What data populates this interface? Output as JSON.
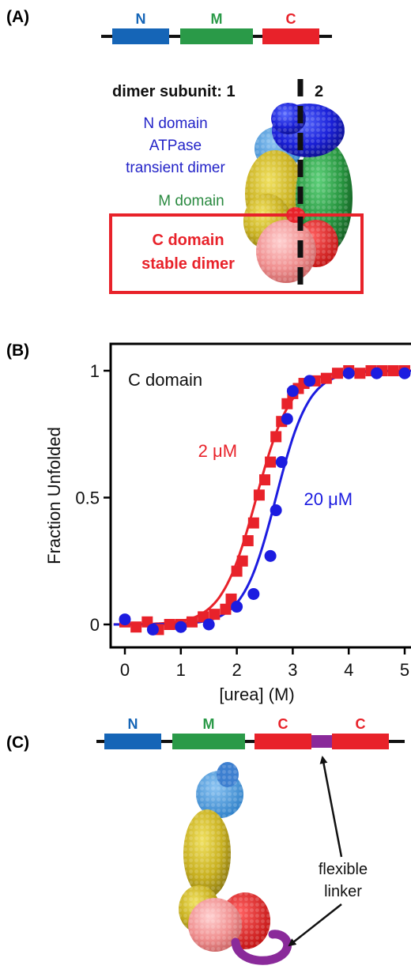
{
  "panels": {
    "a": "(A)",
    "b": "(B)",
    "c": "(C)"
  },
  "panel_a": {
    "domain_bar": [
      {
        "label": "N",
        "color": "#1565b7"
      },
      {
        "label": "M",
        "color": "#2a9a48"
      },
      {
        "label": "C",
        "color": "#e8222a"
      }
    ],
    "subunit_label": "dimer subunit: 1",
    "subunit_2": "2",
    "n_domain_lines": [
      "N domain",
      "ATPase",
      "transient dimer"
    ],
    "m_domain": "M domain",
    "c_domain_lines": [
      "C domain",
      "stable dimer"
    ]
  },
  "chart_data": {
    "type": "scatter",
    "title": "C domain",
    "xlabel": "[urea] (M)",
    "ylabel": "Fraction Unfolded",
    "xlim": [
      -0.2,
      5.2
    ],
    "ylim": [
      -0.05,
      1.1
    ],
    "x_ticks": [
      0,
      1,
      2,
      3,
      4,
      5
    ],
    "x_tick_labels": [
      "0",
      "1",
      "2",
      "3",
      "4",
      "5"
    ],
    "y_ticks": [
      0,
      0.5,
      1
    ],
    "y_tick_labels": [
      "0",
      "0.5",
      "1"
    ],
    "series": [
      {
        "name": "2 μM",
        "color": "#e8222a",
        "marker": "square",
        "points": [
          [
            0.0,
            0.01
          ],
          [
            0.2,
            -0.01
          ],
          [
            0.4,
            0.01
          ],
          [
            0.6,
            -0.02
          ],
          [
            0.8,
            0.0
          ],
          [
            1.0,
            0.0
          ],
          [
            1.2,
            0.01
          ],
          [
            1.4,
            0.03
          ],
          [
            1.6,
            0.04
          ],
          [
            1.8,
            0.06
          ],
          [
            1.9,
            0.1
          ],
          [
            2.0,
            0.21
          ],
          [
            2.1,
            0.25
          ],
          [
            2.2,
            0.33
          ],
          [
            2.3,
            0.4
          ],
          [
            2.4,
            0.51
          ],
          [
            2.5,
            0.57
          ],
          [
            2.6,
            0.64
          ],
          [
            2.7,
            0.74
          ],
          [
            2.8,
            0.8
          ],
          [
            2.9,
            0.87
          ],
          [
            3.0,
            0.91
          ],
          [
            3.1,
            0.93
          ],
          [
            3.2,
            0.95
          ],
          [
            3.4,
            0.96
          ],
          [
            3.6,
            0.97
          ],
          [
            3.8,
            0.99
          ],
          [
            4.0,
            1.0
          ],
          [
            4.2,
            0.99
          ],
          [
            4.4,
            1.0
          ],
          [
            4.6,
            1.0
          ],
          [
            4.8,
            1.0
          ],
          [
            5.0,
            1.0
          ]
        ],
        "fit_midpoint": 2.35,
        "fit_slope": 3.2
      },
      {
        "name": "20 μM",
        "color": "#1c1ce0",
        "marker": "circle",
        "points": [
          [
            0.0,
            0.02
          ],
          [
            0.5,
            -0.02
          ],
          [
            1.0,
            -0.01
          ],
          [
            1.5,
            0.0
          ],
          [
            2.0,
            0.07
          ],
          [
            2.3,
            0.12
          ],
          [
            2.6,
            0.27
          ],
          [
            2.7,
            0.45
          ],
          [
            2.8,
            0.64
          ],
          [
            2.9,
            0.81
          ],
          [
            3.0,
            0.92
          ],
          [
            3.3,
            0.96
          ],
          [
            4.0,
            0.99
          ],
          [
            4.5,
            0.99
          ],
          [
            5.0,
            0.99
          ]
        ],
        "fit_midpoint": 2.7,
        "fit_slope": 3.4
      }
    ],
    "annotations": [
      {
        "text": "2 μM",
        "color": "#e8222a",
        "x": 2.1,
        "y": 0.66
      },
      {
        "text": "20 μM",
        "color": "#1c1ce0",
        "x": 3.2,
        "y": 0.47
      }
    ]
  },
  "panel_c": {
    "domain_bar": [
      {
        "label": "N",
        "color": "#1565b7"
      },
      {
        "label": "M",
        "color": "#2a9a48"
      },
      {
        "label": "C",
        "color": "#e8222a"
      },
      {
        "label": "C",
        "color": "#e8222a"
      }
    ],
    "linker_color": "#8a2a9a",
    "linker_lines": [
      "flexible",
      "linker"
    ]
  }
}
